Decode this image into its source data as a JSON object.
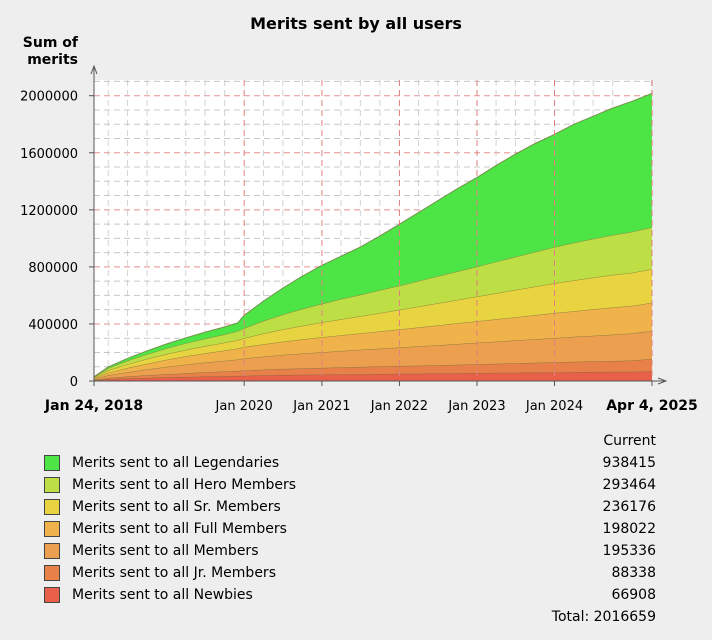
{
  "chart_data": {
    "type": "area",
    "stacked": true,
    "title": "Merits sent by all users",
    "ylabel": "Sum of merits",
    "xlabel": "",
    "ylim": [
      0,
      2110000
    ],
    "yticks": [
      0,
      400000,
      800000,
      1200000,
      1600000,
      2000000
    ],
    "ytick_labels": [
      "0",
      "400000",
      "800000",
      "1200000",
      "1600000",
      "2000000"
    ],
    "xlim": [
      "2018-01-24",
      "2025-04-04"
    ],
    "xticks": [
      {
        "date": "2018-01-24",
        "label": "Jan 24, 2018",
        "bold": true
      },
      {
        "date": "2020-01-01",
        "label": "Jan 2020",
        "bold": false
      },
      {
        "date": "2021-01-01",
        "label": "Jan 2021",
        "bold": false
      },
      {
        "date": "2022-01-01",
        "label": "Jan 2022",
        "bold": false
      },
      {
        "date": "2023-01-01",
        "label": "Jan 2023",
        "bold": false
      },
      {
        "date": "2024-01-01",
        "label": "Jan 2024",
        "bold": false
      },
      {
        "date": "2025-04-04",
        "label": "Apr 4, 2025",
        "bold": true
      }
    ],
    "grid": true,
    "x": [
      "2018-01-24",
      "2018-04-01",
      "2018-07-01",
      "2018-10-01",
      "2019-01-01",
      "2019-04-01",
      "2019-07-01",
      "2019-10-01",
      "2019-12-01",
      "2020-01-01",
      "2020-04-01",
      "2020-07-01",
      "2020-10-01",
      "2021-01-01",
      "2021-04-01",
      "2021-07-01",
      "2021-10-01",
      "2022-01-01",
      "2022-04-01",
      "2022-07-01",
      "2022-10-01",
      "2023-01-01",
      "2023-04-01",
      "2023-07-01",
      "2023-10-01",
      "2024-01-01",
      "2024-04-01",
      "2024-07-01",
      "2024-10-01",
      "2025-01-01",
      "2025-04-04"
    ],
    "series": [
      {
        "name": "Merits sent to all Newbies",
        "color": "#e8604a",
        "values": [
          4000,
          13000,
          18000,
          22000,
          26000,
          29000,
          31500,
          34000,
          36000,
          37500,
          40000,
          42000,
          43500,
          45000,
          46500,
          48000,
          49000,
          50500,
          52000,
          53000,
          54500,
          56000,
          57500,
          58500,
          60000,
          61500,
          62500,
          63500,
          64500,
          65500,
          66908
        ]
      },
      {
        "name": "Merits sent to all Jr. Members",
        "color": "#e8804a",
        "values": [
          3000,
          9000,
          14000,
          18000,
          22000,
          26000,
          30000,
          33000,
          35000,
          37000,
          40000,
          43000,
          45000,
          47000,
          49000,
          51000,
          53000,
          54500,
          56000,
          58000,
          60000,
          62000,
          64000,
          66000,
          68000,
          70000,
          72000,
          74000,
          76000,
          78000,
          88338
        ]
      },
      {
        "name": "Merits sent to all Members",
        "color": "#ec9f4e",
        "values": [
          5000,
          18000,
          30000,
          41000,
          51000,
          60000,
          68000,
          75000,
          80000,
          84000,
          91000,
          98000,
          104000,
          110000,
          115000,
          120000,
          125000,
          130000,
          135000,
          140000,
          145000,
          150000,
          155000,
          160000,
          165000,
          170000,
          175000,
          180000,
          185000,
          190000,
          195336
        ]
      },
      {
        "name": "Merits sent to all Full Members",
        "color": "#f0b24a",
        "values": [
          6000,
          18000,
          30000,
          40000,
          50000,
          58000,
          65000,
          72000,
          77000,
          80000,
          87000,
          93000,
          99000,
          105000,
          110000,
          115000,
          121000,
          127000,
          133000,
          139000,
          145000,
          151000,
          157000,
          163000,
          169000,
          175000,
          180000,
          185000,
          190000,
          194000,
          198022
        ]
      },
      {
        "name": "Merits sent to all Sr. Members",
        "color": "#e8d440",
        "values": [
          6000,
          17000,
          26000,
          34000,
          40000,
          45000,
          50000,
          55000,
          59000,
          62000,
          75000,
          86000,
          96000,
          104000,
          113000,
          121000,
          129000,
          137000,
          146000,
          155000,
          164000,
          173000,
          182000,
          191000,
          200000,
          209000,
          216000,
          222000,
          228000,
          232000,
          236176
        ]
      },
      {
        "name": "Merits sent to all Hero Members",
        "color": "#bede46",
        "values": [
          4000,
          15000,
          25000,
          33000,
          40000,
          47000,
          53000,
          58000,
          62000,
          70000,
          88000,
          104000,
          118000,
          130000,
          141000,
          150000,
          160000,
          170000,
          180000,
          190000,
          200000,
          210000,
          221000,
          232000,
          243000,
          254000,
          264000,
          272000,
          280000,
          287000,
          293464
        ]
      },
      {
        "name": "Merits sent to all Legendaries",
        "color": "#4de546",
        "values": [
          2000,
          8000,
          16000,
          24000,
          31000,
          38000,
          45000,
          52000,
          58000,
          90000,
          140000,
          186000,
          230000,
          270000,
          300000,
          335000,
          380000,
          430000,
          480000,
          530000,
          580000,
          625000,
          675000,
          720000,
          760000,
          790000,
          830000,
          860000,
          890000,
          915000,
          938415
        ]
      }
    ]
  },
  "legend": {
    "header": "Current",
    "items": [
      {
        "label": "Merits sent to all Legendaries",
        "value": "938415",
        "color": "#4de546"
      },
      {
        "label": "Merits sent to all Hero Members",
        "value": "293464",
        "color": "#bede46"
      },
      {
        "label": "Merits sent to all Sr. Members",
        "value": "236176",
        "color": "#e8d440"
      },
      {
        "label": "Merits sent to all Full Members",
        "value": "198022",
        "color": "#f0b24a"
      },
      {
        "label": "Merits sent to all Members",
        "value": "195336",
        "color": "#ec9f4e"
      },
      {
        "label": "Merits sent to all Jr. Members",
        "value": "88338",
        "color": "#e8804a"
      },
      {
        "label": "Merits sent to all Newbies",
        "value": "66908",
        "color": "#e8604a"
      }
    ],
    "total": "Total: 2016659"
  }
}
